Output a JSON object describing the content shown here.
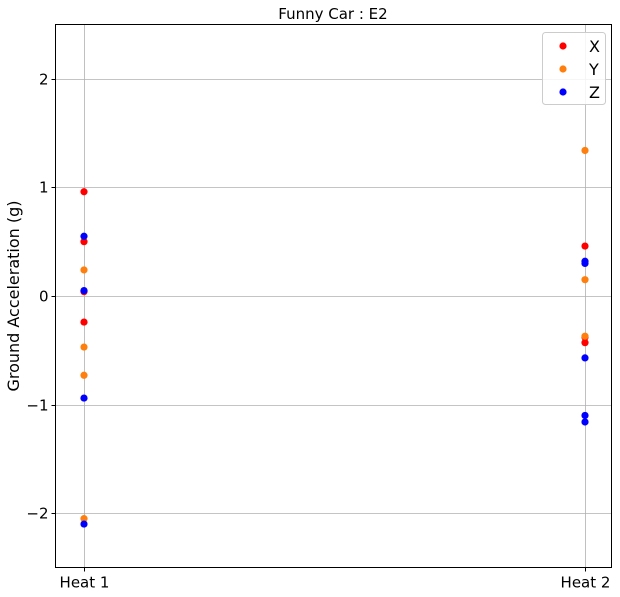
{
  "chart_data": {
    "type": "scatter",
    "title": "Funny Car : E2",
    "xlabel": "",
    "ylabel": "Ground Acceleration (g)",
    "categories": [
      "Heat 1",
      "Heat 2"
    ],
    "ylim": [
      -2.5,
      2.5
    ],
    "yticks": [
      -2,
      -1,
      0,
      1,
      2
    ],
    "ytick_labels": [
      "−2",
      "−1",
      "0",
      "1",
      "2"
    ],
    "grid": true,
    "legend_position": "top-right",
    "series": [
      {
        "name": "X",
        "color": "#ff0000",
        "points": [
          {
            "cat": 0,
            "y": 0.96
          },
          {
            "cat": 0,
            "y": 0.5
          },
          {
            "cat": 0,
            "y": 0.04
          },
          {
            "cat": 0,
            "y": -0.24
          },
          {
            "cat": 1,
            "y": 0.46
          },
          {
            "cat": 1,
            "y": -0.38
          },
          {
            "cat": 1,
            "y": -0.43
          }
        ]
      },
      {
        "name": "Y",
        "color": "#ff7f0e",
        "points": [
          {
            "cat": 0,
            "y": 0.24
          },
          {
            "cat": 0,
            "y": -0.47
          },
          {
            "cat": 0,
            "y": -0.73
          },
          {
            "cat": 0,
            "y": -2.05
          },
          {
            "cat": 1,
            "y": 1.34
          },
          {
            "cat": 1,
            "y": 0.15
          },
          {
            "cat": 1,
            "y": -0.37
          }
        ]
      },
      {
        "name": "Z",
        "color": "#0000ff",
        "points": [
          {
            "cat": 0,
            "y": 0.55
          },
          {
            "cat": 0,
            "y": 0.05
          },
          {
            "cat": 0,
            "y": -0.94
          },
          {
            "cat": 0,
            "y": -2.1
          },
          {
            "cat": 1,
            "y": 0.32
          },
          {
            "cat": 1,
            "y": 0.3
          },
          {
            "cat": 1,
            "y": -0.57
          },
          {
            "cat": 1,
            "y": -1.1
          },
          {
            "cat": 1,
            "y": -1.16
          }
        ]
      }
    ]
  }
}
